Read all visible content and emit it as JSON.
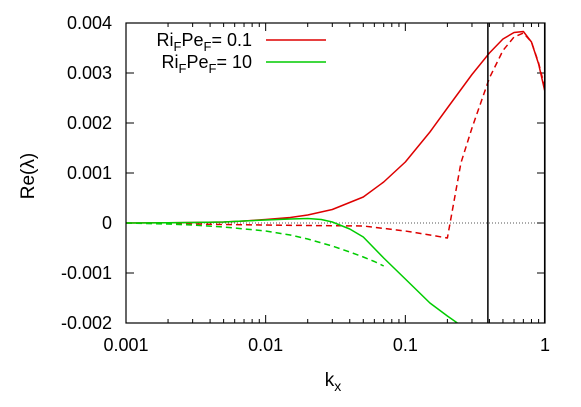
{
  "chart_data": {
    "type": "line",
    "xlabel": "k",
    "xlabel_sub": "x",
    "ylabel": "Re(λ)",
    "xscale": "log",
    "xlim": [
      0.001,
      1
    ],
    "ylim": [
      -0.002,
      0.004
    ],
    "xticks": [
      {
        "value": 0.001,
        "label": "0.001"
      },
      {
        "value": 0.01,
        "label": "0.01"
      },
      {
        "value": 0.1,
        "label": "0.1"
      },
      {
        "value": 1,
        "label": "1"
      }
    ],
    "yticks": [
      {
        "value": -0.002,
        "label": "-0.002"
      },
      {
        "value": -0.001,
        "label": "-0.001"
      },
      {
        "value": 0,
        "label": "0"
      },
      {
        "value": 0.001,
        "label": "0.001"
      },
      {
        "value": 0.002,
        "label": "0.002"
      },
      {
        "value": 0.003,
        "label": "0.003"
      },
      {
        "value": 0.004,
        "label": "0.004"
      }
    ],
    "grid": false,
    "zero_line": true,
    "vertical_lines": [
      0.39,
      0.995
    ],
    "legend_position": "top-left",
    "legend": [
      {
        "parts": [
          "Ri",
          "F",
          "Pe",
          "F",
          "= 0.1"
        ],
        "color": "#dd0000"
      },
      {
        "parts": [
          "Ri",
          "F",
          "Pe",
          "F",
          "= 10"
        ],
        "color": "#00cc00"
      }
    ],
    "series": [
      {
        "legend_index": 0,
        "color": "#dd0000",
        "dash": "solid",
        "x": [
          0.001,
          0.002,
          0.003,
          0.005,
          0.007,
          0.01,
          0.015,
          0.02,
          0.03,
          0.05,
          0.07,
          0.1,
          0.15,
          0.2,
          0.3,
          0.4,
          0.5,
          0.6,
          0.7,
          0.8,
          0.9,
          1.0
        ],
        "y": [
          0.0,
          5e-06,
          1e-05,
          2e-05,
          4e-05,
          7e-05,
          0.00011,
          0.00016,
          0.00027,
          0.00052,
          0.00082,
          0.00122,
          0.00182,
          0.0023,
          0.00297,
          0.0034,
          0.00368,
          0.00381,
          0.00383,
          0.00362,
          0.00318,
          0.00262
        ]
      },
      {
        "legend_index": 0,
        "color": "#dd0000",
        "dash": "dashed",
        "x": [
          0.001,
          0.002,
          0.003,
          0.005,
          0.01,
          0.02,
          0.05,
          0.1,
          0.15,
          0.2,
          0.25,
          0.3,
          0.4,
          0.5,
          0.6,
          0.7,
          0.8,
          0.9,
          1.0
        ],
        "y": [
          0.0,
          -1e-05,
          -2e-05,
          -3e-05,
          -4e-05,
          -5e-05,
          -6e-05,
          -0.00016,
          -0.00024,
          -0.0003,
          0.0012,
          0.0019,
          0.0029,
          0.00345,
          0.00372,
          0.0038,
          0.00362,
          0.0032,
          0.0027
        ]
      },
      {
        "legend_index": 1,
        "color": "#00cc00",
        "dash": "solid",
        "x": [
          0.001,
          0.002,
          0.003,
          0.005,
          0.007,
          0.01,
          0.015,
          0.02,
          0.025,
          0.03,
          0.04,
          0.05,
          0.07,
          0.1,
          0.15,
          0.2,
          0.25
        ],
        "y": [
          0.0,
          5e-06,
          1e-05,
          2e-05,
          4e-05,
          6e-05,
          8e-05,
          9e-05,
          7e-05,
          2e-05,
          -0.00012,
          -0.00028,
          -0.0007,
          -0.00112,
          -0.0016,
          -0.00186,
          -0.00205
        ]
      },
      {
        "legend_index": 1,
        "color": "#00cc00",
        "dash": "dashed",
        "x": [
          0.001,
          0.002,
          0.003,
          0.005,
          0.01,
          0.015,
          0.02,
          0.03,
          0.04,
          0.05,
          0.06,
          0.07
        ],
        "y": [
          0.0,
          -2e-05,
          -4e-05,
          -8e-05,
          -0.00016,
          -0.00024,
          -0.00032,
          -0.00046,
          -0.00058,
          -0.00068,
          -0.00077,
          -0.00086
        ]
      }
    ]
  }
}
